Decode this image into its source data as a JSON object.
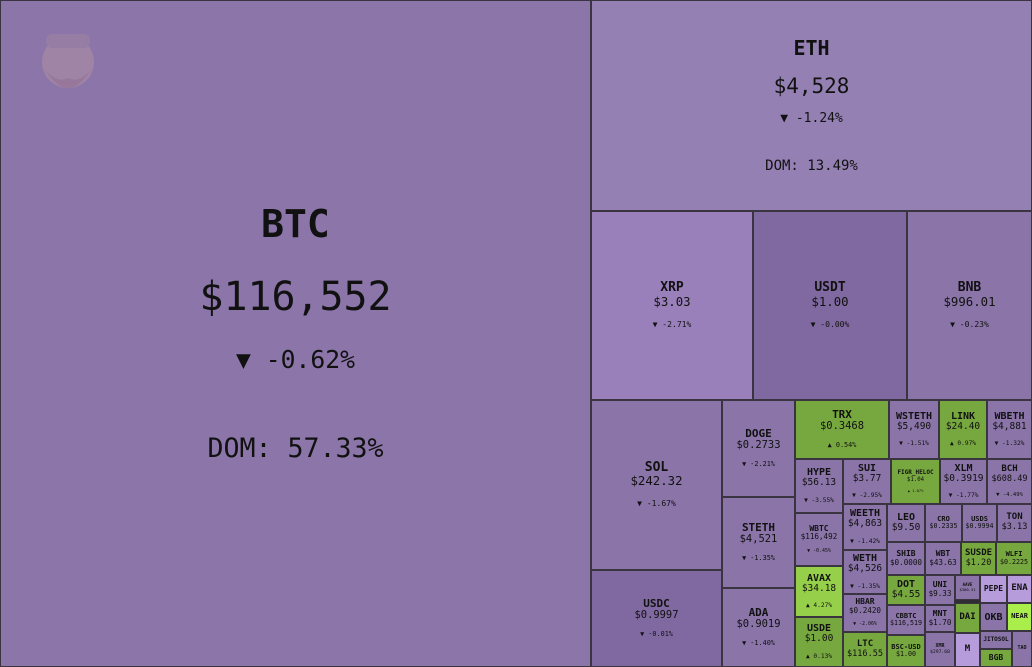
{
  "tiles": [
    {
      "symbol": "BTC",
      "price": "$116,552",
      "change": "▼ -0.62%",
      "dom": "DOM: 57.33%"
    },
    {
      "symbol": "ETH",
      "price": "$4,528",
      "change": "▼ -1.24%",
      "dom": "DOM: 13.49%"
    },
    {
      "symbol": "XRP",
      "price": "$3.03",
      "change": "▼ -2.71%"
    },
    {
      "symbol": "USDT",
      "price": "$1.00",
      "change": "▼ -0.00%"
    },
    {
      "symbol": "BNB",
      "price": "$996.01",
      "change": "▼ -0.23%"
    },
    {
      "symbol": "SOL",
      "price": "$242.32",
      "change": "▼ -1.67%"
    },
    {
      "symbol": "USDC",
      "price": "$0.9997",
      "change": "▼ -0.01%"
    },
    {
      "symbol": "DOGE",
      "price": "$0.2733",
      "change": "▼ -2.21%"
    },
    {
      "symbol": "STETH",
      "price": "$4,521",
      "change": "▼ -1.35%"
    },
    {
      "symbol": "ADA",
      "price": "$0.9019",
      "change": "▼ -1.40%"
    },
    {
      "symbol": "TRX",
      "price": "$0.3468",
      "change": "▲ 0.54%"
    },
    {
      "symbol": "WSTETH",
      "price": "$5,490",
      "change": "▼ -1.51%"
    },
    {
      "symbol": "LINK",
      "price": "$24.40",
      "change": "▲ 0.97%"
    },
    {
      "symbol": "WBETH",
      "price": "$4,881",
      "change": "▼ -1.32%"
    },
    {
      "symbol": "HYPE",
      "price": "$56.13",
      "change": "▼ -3.55%"
    },
    {
      "symbol": "SUI",
      "price": "$3.77",
      "change": "▼ -2.95%"
    },
    {
      "symbol": "FIGR_HELOC",
      "price": "$1.04",
      "change": "▲ 1.07%"
    },
    {
      "symbol": "XLM",
      "price": "$0.3919",
      "change": "▼ -1.77%"
    },
    {
      "symbol": "BCH",
      "price": "$608.49",
      "change": "▼ -4.49%"
    },
    {
      "symbol": "WBTC",
      "price": "$116,492",
      "change": "▼ -0.45%"
    },
    {
      "symbol": "WEETH",
      "price": "$4,863",
      "change": "▼ -1.42%"
    },
    {
      "symbol": "LEO",
      "price": "$9.50"
    },
    {
      "symbol": "CRO",
      "price": "$0.2335"
    },
    {
      "symbol": "USDS",
      "price": "$0.9994"
    },
    {
      "symbol": "TON",
      "price": "$3.13"
    },
    {
      "symbol": "WETH",
      "price": "$4,526",
      "change": "▼ -1.35%"
    },
    {
      "symbol": "SHIB",
      "price": "$0.0000"
    },
    {
      "symbol": "WBT",
      "price": "$43.63"
    },
    {
      "symbol": "SUSDE",
      "price": "$1.20"
    },
    {
      "symbol": "WLFI",
      "price": "$0.2225"
    },
    {
      "symbol": "AVAX",
      "price": "$34.18",
      "change": "▲ 4.27%"
    },
    {
      "symbol": "HBAR",
      "price": "$0.2420",
      "change": "▼ -2.06%"
    },
    {
      "symbol": "DOT",
      "price": "$4.55"
    },
    {
      "symbol": "UNI",
      "price": "$9.33"
    },
    {
      "symbol": "AAVE",
      "price": "$300.31"
    },
    {
      "symbol": "PEPE"
    },
    {
      "symbol": "ENA"
    },
    {
      "symbol": "CBBTC",
      "price": "$116,519"
    },
    {
      "symbol": "MNT",
      "price": "$1.70"
    },
    {
      "symbol": "DAI"
    },
    {
      "symbol": "OKB"
    },
    {
      "symbol": "NEAR"
    },
    {
      "symbol": "USDE",
      "price": "$1.00",
      "change": "▲ 0.13%"
    },
    {
      "symbol": "LTC",
      "price": "$116.55"
    },
    {
      "symbol": "BSC-USD",
      "price": "$1.00"
    },
    {
      "symbol": "XMR",
      "price": "$297.60"
    },
    {
      "symbol": "M"
    },
    {
      "symbol": "JITOSOL"
    },
    {
      "symbol": "TAO"
    },
    {
      "symbol": "BGB"
    }
  ]
}
